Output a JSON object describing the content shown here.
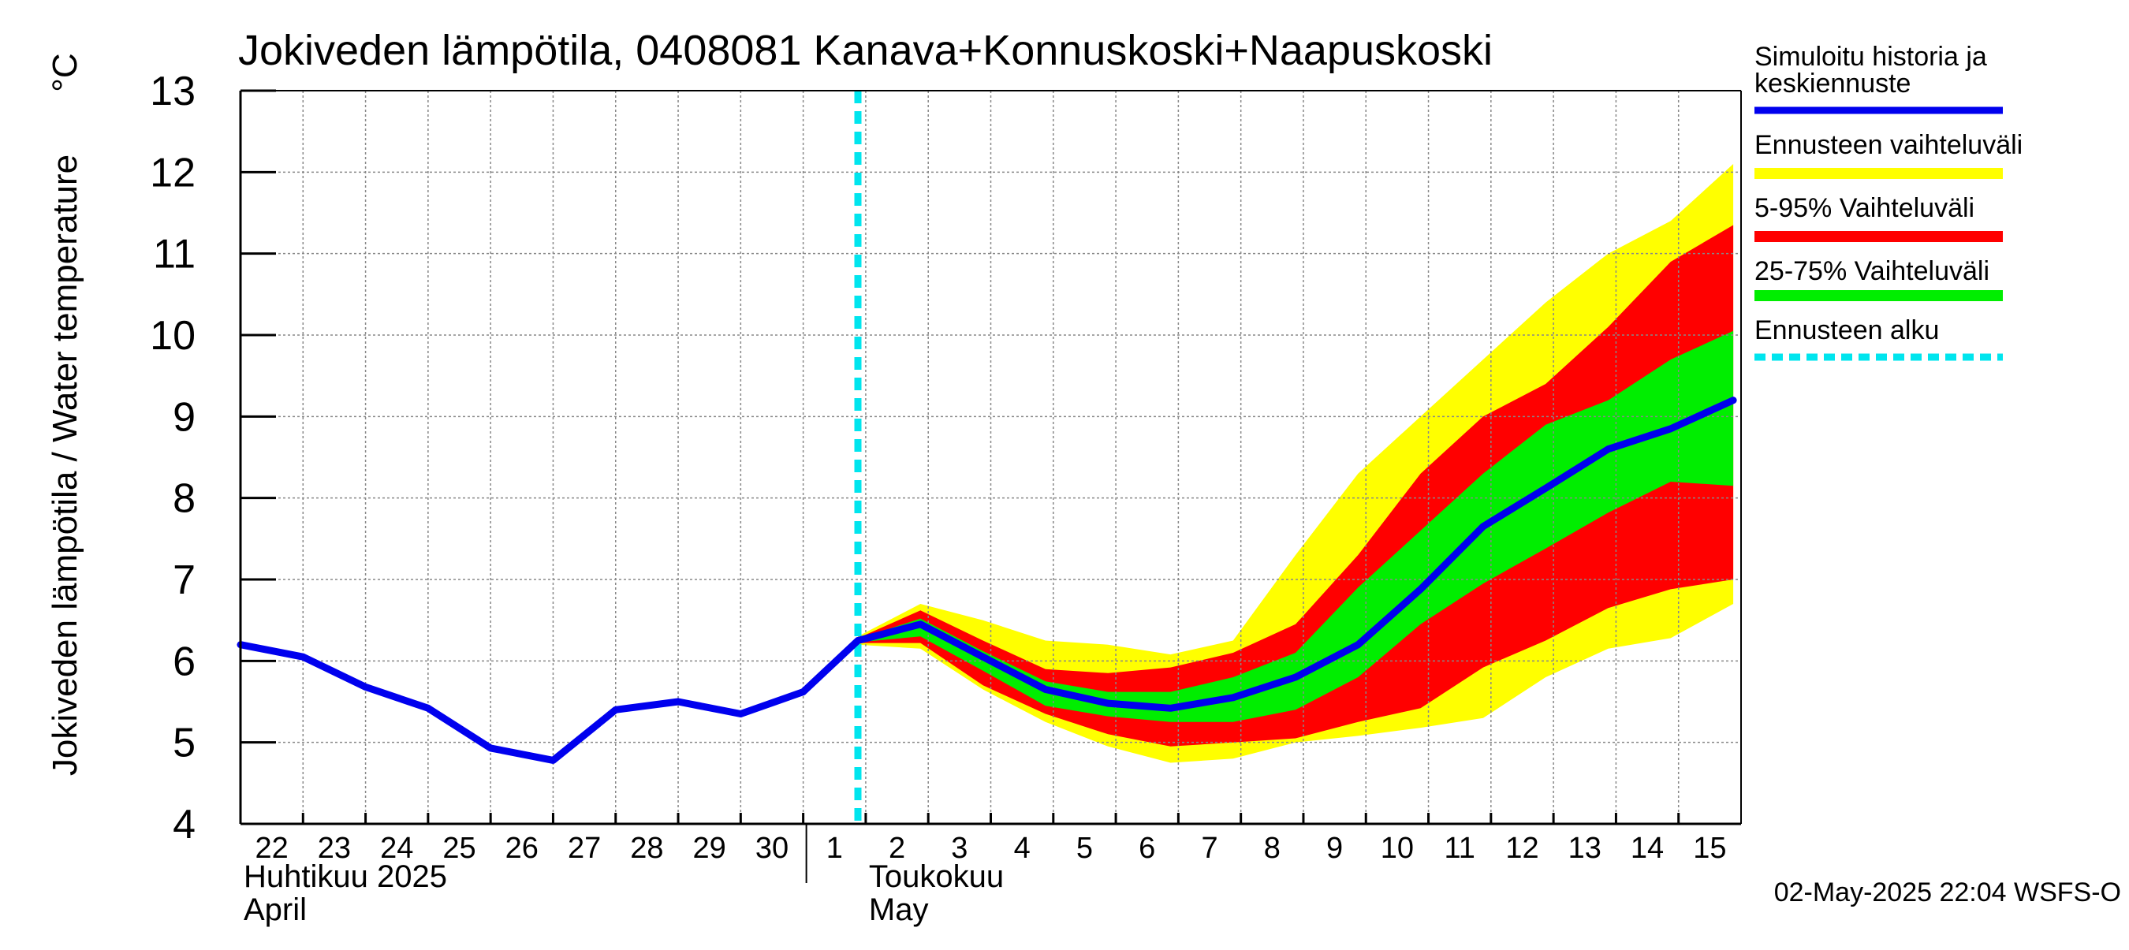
{
  "chart_data": {
    "type": "area",
    "title": "Jokiveden lämpötila, 0408081 Kanava+Konnuskoski+Naapuskoski",
    "ylabel": "Jokiveden lämpötila / Water temperature",
    "yunit": "°C",
    "ylim": [
      4,
      13
    ],
    "yticks": [
      4,
      5,
      6,
      7,
      8,
      9,
      10,
      11,
      12,
      13
    ],
    "grid": true,
    "legend_position": "right",
    "x_start": "2025-04-22",
    "x_end": "2025-05-15",
    "month_labels": [
      {
        "fi": "Huhtikuu  2025",
        "en": "April",
        "start": "2025-04-22"
      },
      {
        "fi": "Toukokuu",
        "en": "May",
        "start": "2025-05-02"
      }
    ],
    "day_tick_labels": [
      "22",
      "23",
      "24",
      "25",
      "26",
      "27",
      "28",
      "29",
      "30",
      "1",
      "2",
      "3",
      "4",
      "5",
      "6",
      "7",
      "8",
      "9",
      "10",
      "11",
      "12",
      "13",
      "14",
      "15"
    ],
    "forecast_start": "2025-05-01T21:00",
    "timestamp": "02-May-2025 22:04 WSFS-O",
    "colors": {
      "history": "#0000ee",
      "yellow_band": "#ffff00",
      "red_band": "#ff0000",
      "green_band": "#00ee00",
      "forecast_line": "#00e5ee",
      "grid": "#888888"
    },
    "legend": [
      {
        "label": "Simuloitu historia ja keskiennuste",
        "color": "#0000ee",
        "style": "solid"
      },
      {
        "label": "Ennusteen vaihteluväli",
        "color": "#ffff00",
        "style": "solid"
      },
      {
        "label": "5-95% Vaihteluväli",
        "color": "#ff0000",
        "style": "solid"
      },
      {
        "label": "25-75% Vaihteluväli",
        "color": "#00ee00",
        "style": "solid"
      },
      {
        "label": "Ennusteen alku",
        "color": "#00e5ee",
        "style": "dashed"
      }
    ],
    "series": [
      {
        "name": "Simuloitu historia ja keskiennuste",
        "x": [
          "2025-04-22",
          "2025-04-23",
          "2025-04-24",
          "2025-04-25",
          "2025-04-26",
          "2025-04-27",
          "2025-04-28",
          "2025-04-29",
          "2025-04-30",
          "2025-05-01",
          "2025-05-01T21:00",
          "2025-05-02T21:00",
          "2025-05-03T21:00",
          "2025-05-04T21:00",
          "2025-05-05T21:00",
          "2025-05-06T21:00",
          "2025-05-07T21:00",
          "2025-05-08T21:00",
          "2025-05-09T21:00",
          "2025-05-10T21:00",
          "2025-05-11T21:00",
          "2025-05-12T21:00",
          "2025-05-13T21:00",
          "2025-05-14T21:00",
          "2025-05-15T21:00"
        ],
        "y": [
          6.2,
          6.05,
          5.68,
          5.42,
          4.93,
          4.78,
          5.4,
          5.5,
          5.35,
          5.62,
          6.25,
          6.45,
          6.05,
          5.65,
          5.48,
          5.42,
          5.55,
          5.8,
          6.2,
          6.88,
          7.65,
          8.12,
          8.6,
          8.85,
          9.2
        ]
      }
    ],
    "bands": {
      "x": [
        "2025-05-01T21:00",
        "2025-05-02T21:00",
        "2025-05-03T21:00",
        "2025-05-04T21:00",
        "2025-05-05T21:00",
        "2025-05-06T21:00",
        "2025-05-07T21:00",
        "2025-05-08T21:00",
        "2025-05-09T21:00",
        "2025-05-10T21:00",
        "2025-05-11T21:00",
        "2025-05-12T21:00",
        "2025-05-13T21:00",
        "2025-05-14T21:00",
        "2025-05-15T21:00"
      ],
      "range_min": [
        6.2,
        6.15,
        5.65,
        5.25,
        4.95,
        4.75,
        4.8,
        5.0,
        5.08,
        5.18,
        5.3,
        5.8,
        6.15,
        6.28,
        6.7
      ],
      "range_max": [
        6.3,
        6.7,
        6.5,
        6.25,
        6.2,
        6.08,
        6.25,
        7.3,
        8.3,
        9.0,
        9.7,
        10.4,
        11.0,
        11.4,
        12.1
      ],
      "p5": [
        6.22,
        6.22,
        5.7,
        5.35,
        5.1,
        4.95,
        5.0,
        5.05,
        5.25,
        5.42,
        5.92,
        6.25,
        6.65,
        6.88,
        7.0
      ],
      "p95": [
        6.28,
        6.62,
        6.25,
        5.9,
        5.85,
        5.92,
        6.1,
        6.45,
        7.3,
        8.3,
        9.0,
        9.4,
        10.1,
        10.9,
        11.35
      ],
      "p25": [
        6.23,
        6.3,
        5.88,
        5.45,
        5.32,
        5.25,
        5.25,
        5.4,
        5.8,
        6.45,
        6.95,
        7.38,
        7.82,
        8.2,
        8.15
      ],
      "p75": [
        6.27,
        6.52,
        6.12,
        5.75,
        5.62,
        5.62,
        5.8,
        6.1,
        6.9,
        7.6,
        8.3,
        8.9,
        9.2,
        9.7,
        10.05
      ]
    }
  }
}
